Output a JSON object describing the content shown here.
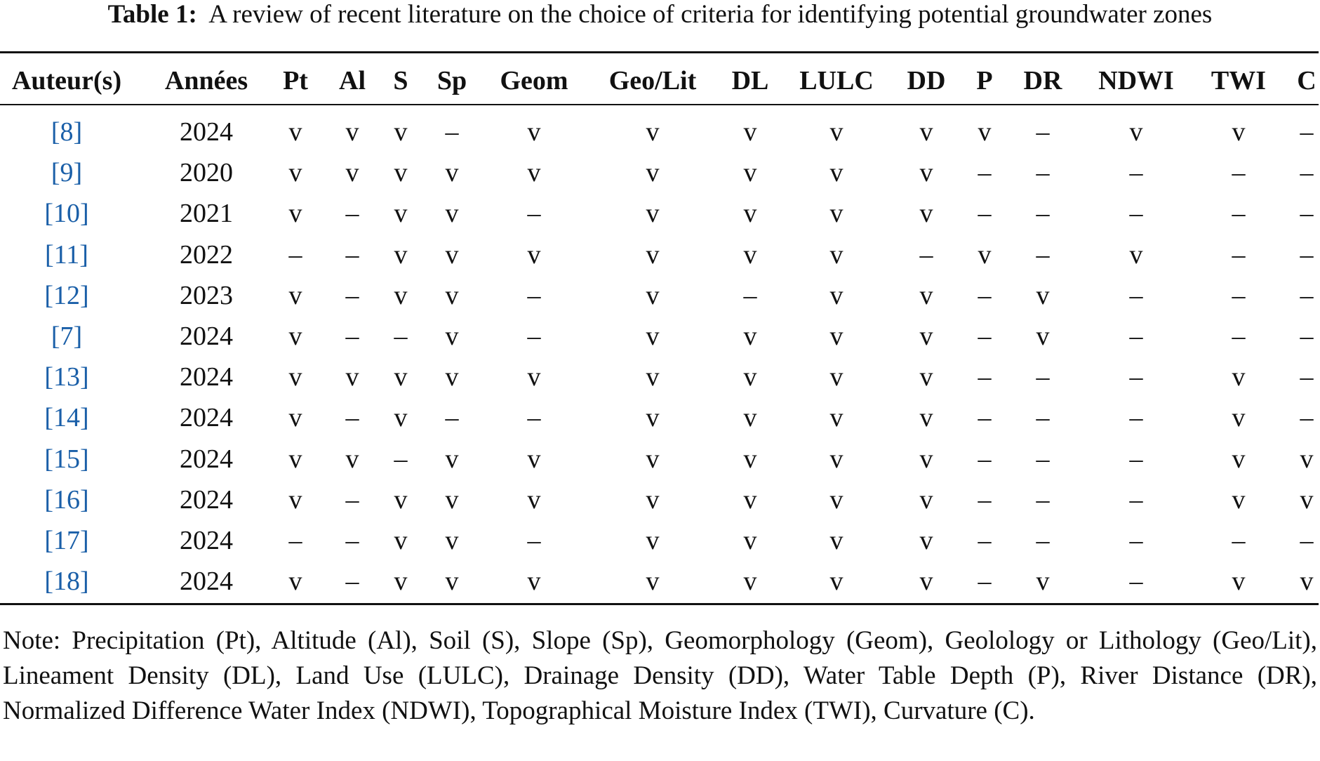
{
  "table": {
    "caption_label": "Table 1:",
    "caption": "A review of recent literature on the choice of criteria for identifying potential groundwater zones",
    "headers": [
      "Auteur(s)",
      "Années",
      "Pt",
      "Al",
      "S",
      "Sp",
      "Geom",
      "Geo/Lit",
      "DL",
      "LULC",
      "DD",
      "P",
      "DR",
      "NDWI",
      "TWI",
      "C"
    ],
    "rows": [
      [
        "[8]",
        "2024",
        "v",
        "v",
        "v",
        "–",
        "v",
        "v",
        "v",
        "v",
        "v",
        "v",
        "–",
        "v",
        "v",
        "–"
      ],
      [
        "[9]",
        "2020",
        "v",
        "v",
        "v",
        "v",
        "v",
        "v",
        "v",
        "v",
        "v",
        "–",
        "–",
        "–",
        "–",
        "–"
      ],
      [
        "[10]",
        "2021",
        "v",
        "–",
        "v",
        "v",
        "–",
        "v",
        "v",
        "v",
        "v",
        "–",
        "–",
        "–",
        "–",
        "–"
      ],
      [
        "[11]",
        "2022",
        "–",
        "–",
        "v",
        "v",
        "v",
        "v",
        "v",
        "v",
        "–",
        "v",
        "–",
        "v",
        "–",
        "–"
      ],
      [
        "[12]",
        "2023",
        "v",
        "–",
        "v",
        "v",
        "–",
        "v",
        "–",
        "v",
        "v",
        "–",
        "v",
        "–",
        "–",
        "–"
      ],
      [
        "[7]",
        "2024",
        "v",
        "–",
        "–",
        "v",
        "–",
        "v",
        "v",
        "v",
        "v",
        "–",
        "v",
        "–",
        "–",
        "–"
      ],
      [
        "[13]",
        "2024",
        "v",
        "v",
        "v",
        "v",
        "v",
        "v",
        "v",
        "v",
        "v",
        "–",
        "–",
        "–",
        "v",
        "–"
      ],
      [
        "[14]",
        "2024",
        "v",
        "–",
        "v",
        "–",
        "–",
        "v",
        "v",
        "v",
        "v",
        "–",
        "–",
        "–",
        "v",
        "–"
      ],
      [
        "[15]",
        "2024",
        "v",
        "v",
        "–",
        "v",
        "v",
        "v",
        "v",
        "v",
        "v",
        "–",
        "–",
        "–",
        "v",
        "v"
      ],
      [
        "[16]",
        "2024",
        "v",
        "–",
        "v",
        "v",
        "v",
        "v",
        "v",
        "v",
        "v",
        "–",
        "–",
        "–",
        "v",
        "v"
      ],
      [
        "[17]",
        "2024",
        "–",
        "–",
        "v",
        "v",
        "–",
        "v",
        "v",
        "v",
        "v",
        "–",
        "–",
        "–",
        "–",
        "–"
      ],
      [
        "[18]",
        "2024",
        "v",
        "–",
        "v",
        "v",
        "v",
        "v",
        "v",
        "v",
        "v",
        "–",
        "v",
        "–",
        "v",
        "v"
      ]
    ],
    "note": "Note: Precipitation (Pt), Altitude (Al), Soil (S), Slope (Sp), Geomorphology (Geom), Geolology or Lithology (Geo/Lit), Lineament Density (DL), Land Use (LULC), Drainage Density (DD), Water Table Depth (P), River Distance (DR), Normalized Difference Water Index (NDWI), Topographical Moisture Index (TWI), Curvature (C)."
  }
}
